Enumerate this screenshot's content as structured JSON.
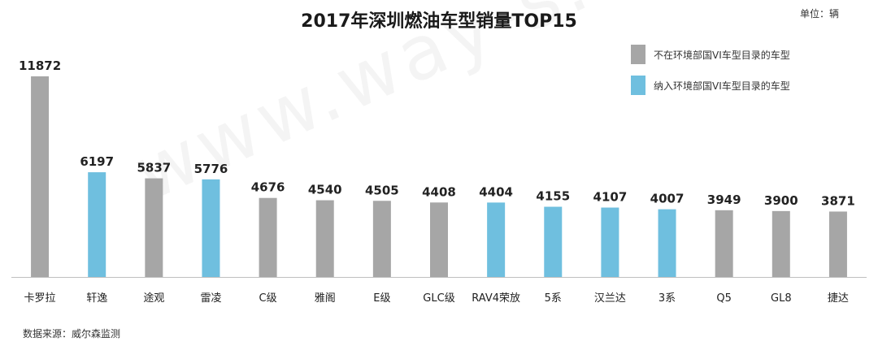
{
  "header": {
    "title": "2017年深圳燃油车型销量TOP15",
    "unit": "单位：辆"
  },
  "legend": [
    {
      "label": "不在环境部国VI车型目录的车型",
      "color": "#a6a6a6"
    },
    {
      "label": "纳入环境部国VI车型目录的车型",
      "color": "#6fbfdf"
    }
  ],
  "footer": {
    "source": "数据来源：威尔森监测"
  },
  "watermark": "www.way-s.cn",
  "chart_data": {
    "type": "bar",
    "title": "2017年深圳燃油车型销量TOP15",
    "unit": "单位：辆",
    "categories": [
      "卡罗拉",
      "轩逸",
      "途观",
      "雷凌",
      "C级",
      "雅阁",
      "E级",
      "GLC级",
      "RAV4荣放",
      "5系",
      "汉兰达",
      "3系",
      "Q5",
      "GL8",
      "捷达"
    ],
    "values": [
      11872,
      6197,
      5837,
      5776,
      4676,
      4540,
      4505,
      4408,
      4404,
      4155,
      4107,
      4007,
      3949,
      3900,
      3871
    ],
    "in_catalog": [
      false,
      true,
      false,
      true,
      false,
      false,
      false,
      false,
      true,
      true,
      true,
      true,
      false,
      false,
      false
    ],
    "colors": {
      "not_in_catalog": "#a6a6a6",
      "in_catalog": "#6fbfdf"
    },
    "ylim": [
      0,
      11872
    ],
    "grid": false,
    "legend_position": "top-right"
  }
}
